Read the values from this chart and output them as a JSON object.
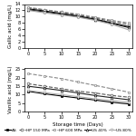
{
  "x": [
    0,
    5,
    10,
    15,
    20,
    25,
    30
  ],
  "top_subplot": {
    "ylabel": "Gallic acid (mg/L)",
    "ylim": [
      0,
      14
    ],
    "yticks": [
      0,
      2,
      4,
      6,
      8,
      10,
      12,
      14
    ],
    "series": {
      "AS": [
        12.5,
        11.8,
        11.0,
        10.2,
        9.2,
        8.0,
        6.8
      ],
      "HP150": [
        12.8,
        12.1,
        11.4,
        10.5,
        9.5,
        8.5,
        7.5
      ],
      "HP600": [
        13.0,
        12.2,
        11.5,
        10.8,
        9.8,
        8.8,
        8.0
      ],
      "US40": [
        12.2,
        11.5,
        10.8,
        10.0,
        9.0,
        7.8,
        6.5
      ],
      "US80": [
        12.0,
        11.2,
        10.5,
        9.8,
        8.8,
        7.5,
        5.8
      ]
    }
  },
  "bottom_subplot": {
    "ylabel": "Vanillic acid (mg/L)",
    "xlabel": "Storage time (Days)",
    "ylim": [
      0,
      26
    ],
    "yticks": [
      0,
      5,
      10,
      15,
      20,
      25
    ],
    "series": {
      "AS": [
        12.0,
        10.5,
        9.2,
        8.0,
        6.8,
        5.5,
        4.5
      ],
      "HP150": [
        16.5,
        15.0,
        13.5,
        12.0,
        11.0,
        9.5,
        8.5
      ],
      "HP600": [
        22.5,
        21.0,
        19.5,
        17.5,
        15.5,
        13.5,
        11.5
      ],
      "US40": [
        15.0,
        13.8,
        12.5,
        11.0,
        9.5,
        8.2,
        7.0
      ],
      "US80": [
        12.5,
        11.2,
        10.0,
        8.8,
        7.5,
        6.5,
        5.5
      ]
    }
  },
  "series_styles": {
    "AS": {
      "color": "#000000",
      "marker": "s",
      "linestyle": "-",
      "linewidth": 0.8,
      "markersize": 2
    },
    "HP150": {
      "color": "#555555",
      "marker": "o",
      "linestyle": "--",
      "linewidth": 0.8,
      "markersize": 2
    },
    "HP600": {
      "color": "#888888",
      "marker": "s",
      "linestyle": "--",
      "linewidth": 0.8,
      "markersize": 2
    },
    "US40": {
      "color": "#222222",
      "marker": "^",
      "linestyle": "-",
      "linewidth": 0.8,
      "markersize": 2
    },
    "US80": {
      "color": "#aaaaaa",
      "marker": "v",
      "linestyle": "-",
      "linewidth": 0.8,
      "markersize": 2
    }
  },
  "legend_labels": {
    "AS": "AS",
    "HP150": "HP 150 MPa",
    "HP600": "HP 600 MPa",
    "US40": "US 40%",
    "US80": "US 80%"
  },
  "xticks": [
    0,
    5,
    10,
    15,
    20,
    25,
    30
  ],
  "tick_fontsize": 3.5,
  "label_fontsize": 4,
  "legend_fontsize": 3.2
}
